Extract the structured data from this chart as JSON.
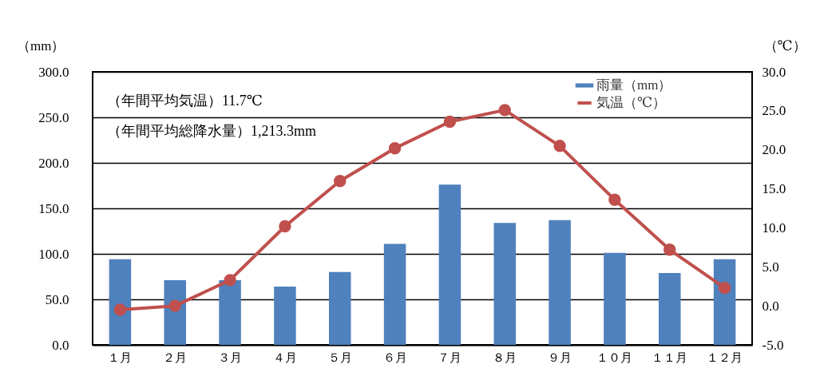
{
  "chart_data": {
    "type": "bar",
    "categories": [
      "１月",
      "２月",
      "３月",
      "４月",
      "５月",
      "６月",
      "７月",
      "８月",
      "９月",
      "１０月",
      "１１月",
      "１２月"
    ],
    "series": [
      {
        "name": "雨量（mm）",
        "color": "#4f81bd",
        "values": [
          94,
          71,
          71,
          64,
          80,
          111,
          176,
          134,
          137,
          101,
          79,
          94
        ]
      },
      {
        "name": "気温（℃）",
        "type": "line",
        "axis": "y2",
        "color": "#c0504d",
        "marker": "circle",
        "values": [
          -0.5,
          0.0,
          3.3,
          10.2,
          16.0,
          20.2,
          23.6,
          25.1,
          20.5,
          13.6,
          7.2,
          2.3
        ]
      }
    ],
    "ylabel": "（mm）",
    "y2label": "（℃）",
    "ylim": [
      0,
      300
    ],
    "yticks": [
      {
        "value": 0,
        "label": "0.0"
      },
      {
        "value": 50,
        "label": "50.0"
      },
      {
        "value": 100,
        "label": "100.0"
      },
      {
        "value": 150,
        "label": "150.0"
      },
      {
        "value": 200,
        "label": "200.0"
      },
      {
        "value": 250,
        "label": "250.0"
      },
      {
        "value": 300,
        "label": "300.0"
      }
    ],
    "y2lim": [
      -5,
      30
    ],
    "y2ticks": [
      {
        "value": -5,
        "label": "-5.0"
      },
      {
        "value": 0,
        "label": "0.0"
      },
      {
        "value": 5,
        "label": "5.0"
      },
      {
        "value": 10,
        "label": "10.0"
      },
      {
        "value": 15,
        "label": "15.0"
      },
      {
        "value": 20,
        "label": "20.0"
      },
      {
        "value": 25,
        "label": "25.0"
      },
      {
        "value": 30,
        "label": "30.0"
      }
    ],
    "grid": "y",
    "legend": "top right",
    "annotations": [
      "（年間平均気温）11.7℃",
      "（年間平均総降水量）1,213.3mm"
    ]
  }
}
